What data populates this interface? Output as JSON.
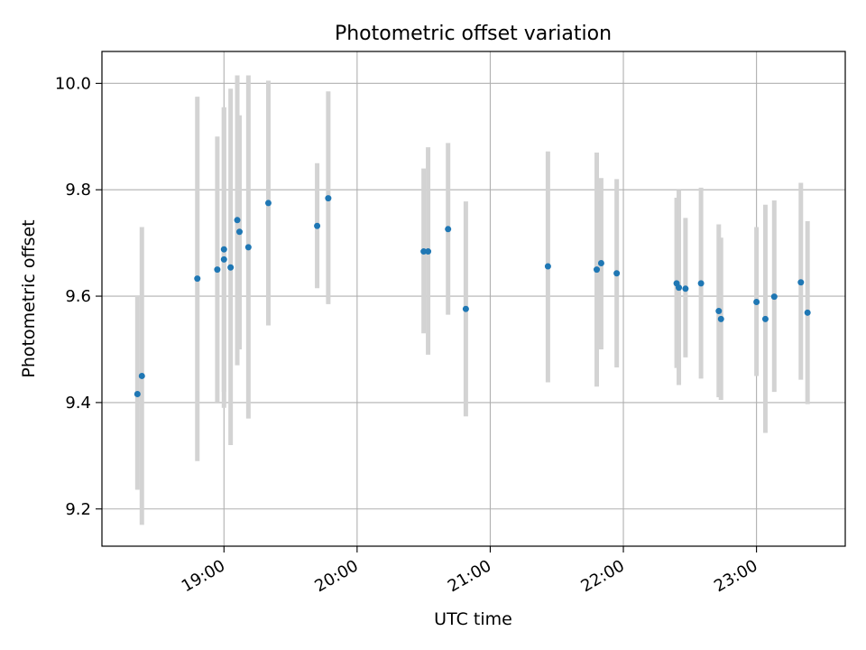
{
  "chart_data": {
    "type": "scatter",
    "title": "Photometric offset variation",
    "xlabel": "UTC time",
    "ylabel": "Photometric offset",
    "grid": true,
    "x_axis_type": "time",
    "xlim": [
      "18:05",
      "23:40"
    ],
    "ylim": [
      9.13,
      10.06
    ],
    "x_ticks": [
      "19:00",
      "20:00",
      "21:00",
      "22:00",
      "23:00"
    ],
    "y_ticks": [
      9.2,
      9.4,
      9.6,
      9.8,
      10.0
    ],
    "y_tick_labels": [
      "9.2",
      "9.4",
      "9.6",
      "9.8",
      "10.0"
    ],
    "colors": {
      "points": "#1f77b4",
      "error_bars": "#d3d3d3",
      "grid": "#b0b0b0"
    },
    "points": [
      {
        "x": "18:21",
        "y": 9.416,
        "y_low": 9.236,
        "y_high": 9.6
      },
      {
        "x": "18:23",
        "y": 9.45,
        "y_low": 9.17,
        "y_high": 9.73
      },
      {
        "x": "18:48",
        "y": 9.633,
        "y_low": 9.29,
        "y_high": 9.975
      },
      {
        "x": "18:57",
        "y": 9.65,
        "y_low": 9.4,
        "y_high": 9.9
      },
      {
        "x": "19:00",
        "y": 9.669,
        "y_low": 9.39,
        "y_high": 9.955
      },
      {
        "x": "19:00",
        "y": 9.688,
        "y_low": 9.42,
        "y_high": 9.955
      },
      {
        "x": "19:03",
        "y": 9.654,
        "y_low": 9.32,
        "y_high": 9.99
      },
      {
        "x": "19:06",
        "y": 9.743,
        "y_low": 9.47,
        "y_high": 10.015
      },
      {
        "x": "19:07",
        "y": 9.721,
        "y_low": 9.5,
        "y_high": 9.94
      },
      {
        "x": "19:11",
        "y": 9.692,
        "y_low": 9.37,
        "y_high": 10.015
      },
      {
        "x": "19:20",
        "y": 9.775,
        "y_low": 9.545,
        "y_high": 10.005
      },
      {
        "x": "19:42",
        "y": 9.732,
        "y_low": 9.615,
        "y_high": 9.85
      },
      {
        "x": "19:47",
        "y": 9.784,
        "y_low": 9.585,
        "y_high": 9.985
      },
      {
        "x": "20:30",
        "y": 9.684,
        "y_low": 9.53,
        "y_high": 9.84
      },
      {
        "x": "20:32",
        "y": 9.684,
        "y_low": 9.49,
        "y_high": 9.88
      },
      {
        "x": "20:41",
        "y": 9.726,
        "y_low": 9.565,
        "y_high": 9.888
      },
      {
        "x": "20:49",
        "y": 9.576,
        "y_low": 9.374,
        "y_high": 9.778
      },
      {
        "x": "21:26",
        "y": 9.656,
        "y_low": 9.438,
        "y_high": 9.872
      },
      {
        "x": "21:48",
        "y": 9.65,
        "y_low": 9.43,
        "y_high": 9.87
      },
      {
        "x": "21:50",
        "y": 9.662,
        "y_low": 9.5,
        "y_high": 9.822
      },
      {
        "x": "21:57",
        "y": 9.643,
        "y_low": 9.466,
        "y_high": 9.82
      },
      {
        "x": "22:24",
        "y": 9.624,
        "y_low": 9.465,
        "y_high": 9.785
      },
      {
        "x": "22:25",
        "y": 9.616,
        "y_low": 9.433,
        "y_high": 9.8
      },
      {
        "x": "22:28",
        "y": 9.614,
        "y_low": 9.485,
        "y_high": 9.747
      },
      {
        "x": "22:35",
        "y": 9.624,
        "y_low": 9.445,
        "y_high": 9.804
      },
      {
        "x": "22:43",
        "y": 9.572,
        "y_low": 9.41,
        "y_high": 9.735
      },
      {
        "x": "22:44",
        "y": 9.557,
        "y_low": 9.405,
        "y_high": 9.71
      },
      {
        "x": "23:00",
        "y": 9.589,
        "y_low": 9.45,
        "y_high": 9.73
      },
      {
        "x": "23:04",
        "y": 9.557,
        "y_low": 9.343,
        "y_high": 9.772
      },
      {
        "x": "23:08",
        "y": 9.599,
        "y_low": 9.42,
        "y_high": 9.78
      },
      {
        "x": "23:20",
        "y": 9.626,
        "y_low": 9.443,
        "y_high": 9.813
      },
      {
        "x": "23:23",
        "y": 9.569,
        "y_low": 9.397,
        "y_high": 9.741
      }
    ]
  }
}
